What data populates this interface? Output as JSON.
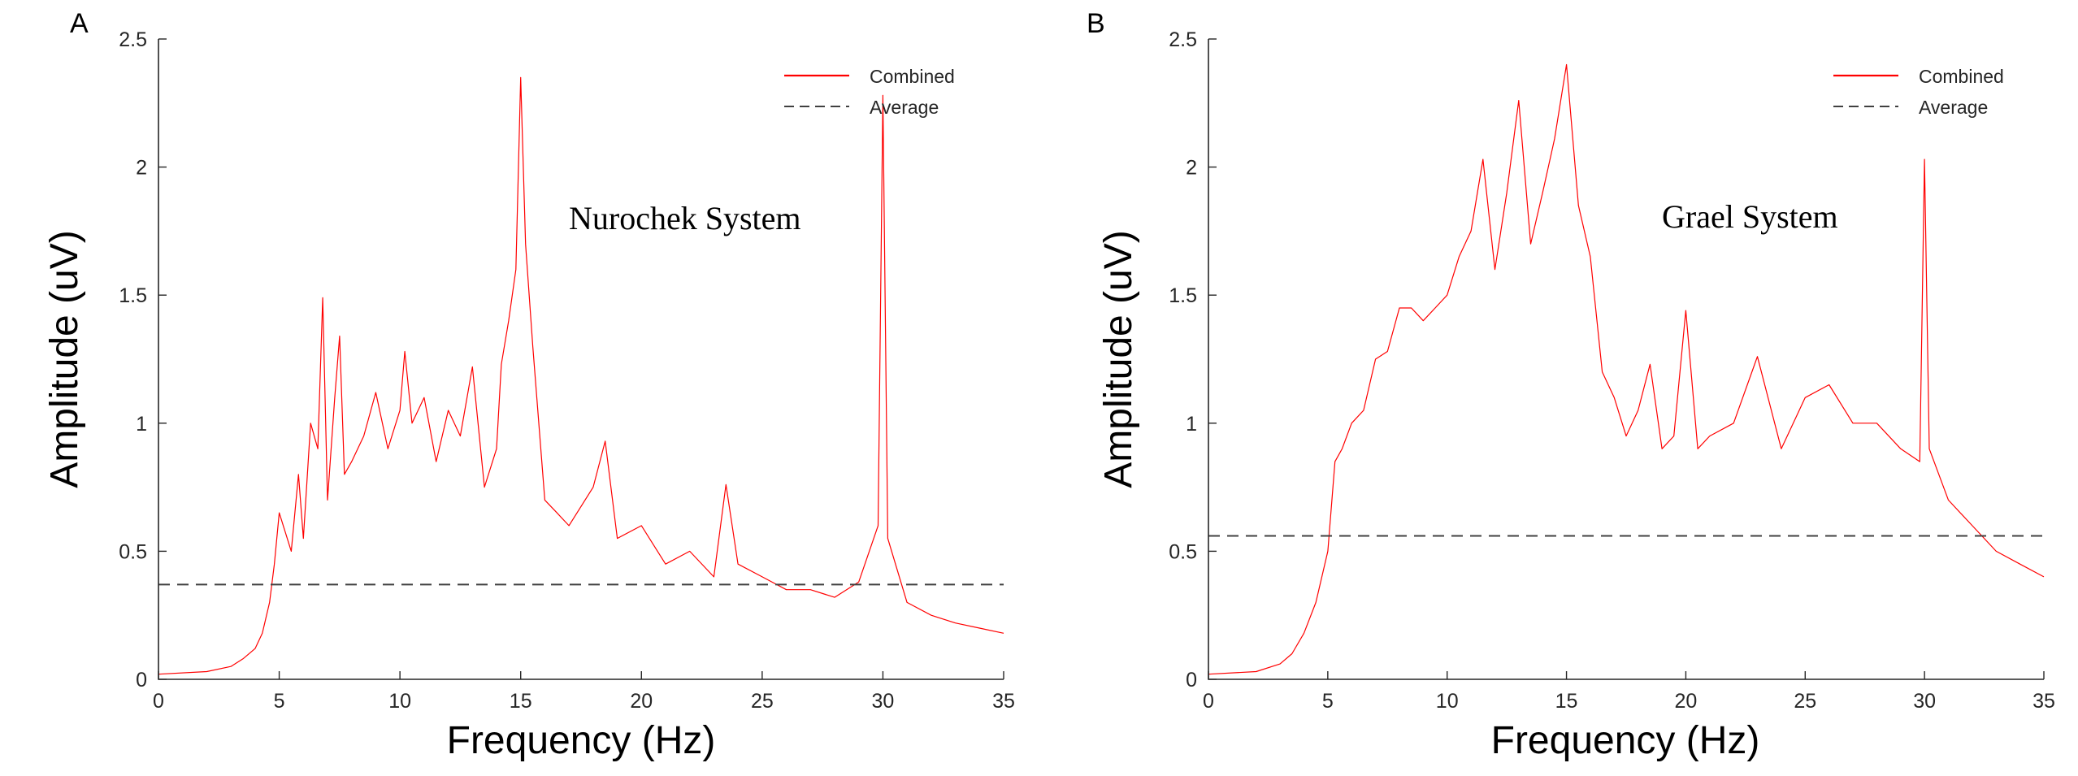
{
  "chart_data": [
    {
      "panel_label": "A",
      "type": "line",
      "annotation": "Nurochek System",
      "xlabel": "Frequency (Hz)",
      "ylabel": "Amplitude (uV)",
      "xlim": [
        0,
        35
      ],
      "ylim": [
        0,
        2.5
      ],
      "xticks": [
        0,
        5,
        10,
        15,
        20,
        25,
        30,
        35
      ],
      "yticks": [
        0,
        0.5,
        1,
        1.5,
        2,
        2.5
      ],
      "ytick_labels": [
        "0",
        "0.5",
        "1",
        "1.5",
        "2",
        "2.5"
      ],
      "grid": false,
      "legend_position": "top-right",
      "series": [
        {
          "name": "Combined",
          "style": "solid",
          "color": "#ff0000",
          "x": [
            0,
            2,
            3,
            3.5,
            4,
            4.3,
            4.6,
            4.8,
            5,
            5.5,
            5.8,
            6,
            6.3,
            6.6,
            6.8,
            7,
            7.3,
            7.5,
            7.7,
            8,
            8.5,
            9,
            9.5,
            10,
            10.2,
            10.5,
            11,
            11.5,
            12,
            12.5,
            13,
            13.5,
            14,
            14.2,
            14.5,
            14.8,
            15,
            15.2,
            15.5,
            16,
            16.5,
            17,
            18,
            18.5,
            19,
            20,
            21,
            22,
            23,
            23.5,
            24,
            25,
            26,
            27,
            28,
            29,
            29.8,
            30,
            30.2,
            31,
            32,
            33,
            34,
            35
          ],
          "y": [
            0.02,
            0.03,
            0.05,
            0.08,
            0.12,
            0.18,
            0.3,
            0.45,
            0.65,
            0.5,
            0.8,
            0.55,
            1.0,
            0.9,
            1.49,
            0.7,
            1.1,
            1.34,
            0.8,
            0.85,
            0.95,
            1.12,
            0.9,
            1.05,
            1.28,
            1.0,
            1.1,
            0.85,
            1.05,
            0.95,
            1.22,
            0.75,
            0.9,
            1.23,
            1.4,
            1.6,
            2.35,
            1.7,
            1.3,
            0.7,
            0.65,
            0.6,
            0.75,
            0.93,
            0.55,
            0.6,
            0.45,
            0.5,
            0.4,
            0.76,
            0.45,
            0.4,
            0.35,
            0.35,
            0.32,
            0.38,
            0.6,
            2.28,
            0.55,
            0.3,
            0.25,
            0.22,
            0.2,
            0.18
          ]
        },
        {
          "name": "Average",
          "style": "dashed",
          "color": "#404040",
          "x": [
            0,
            35
          ],
          "y": [
            0.37,
            0.37
          ]
        }
      ]
    },
    {
      "panel_label": "B",
      "type": "line",
      "annotation": "Grael System",
      "xlabel": "Frequency (Hz)",
      "ylabel": "Amplitude (uV)",
      "xlim": [
        0,
        35
      ],
      "ylim": [
        0,
        2.5
      ],
      "xticks": [
        0,
        5,
        10,
        15,
        20,
        25,
        30,
        35
      ],
      "yticks": [
        0,
        0.5,
        1,
        1.5,
        2,
        2.5
      ],
      "ytick_labels": [
        "0",
        "0.5",
        "1",
        "1.5",
        "2",
        "2.5"
      ],
      "grid": false,
      "legend_position": "top-right",
      "series": [
        {
          "name": "Combined",
          "style": "solid",
          "color": "#ff0000",
          "x": [
            0,
            2,
            3,
            3.5,
            4,
            4.5,
            5,
            5.3,
            5.6,
            6,
            6.5,
            7,
            7.5,
            8,
            8.5,
            9,
            9.5,
            10,
            10.5,
            11,
            11.5,
            12,
            12.5,
            13,
            13.5,
            14,
            14.5,
            15,
            15.5,
            16,
            16.5,
            17,
            17.5,
            18,
            18.5,
            19,
            19.5,
            20,
            20.5,
            21,
            22,
            23,
            24,
            25,
            26,
            27,
            28,
            29,
            29.8,
            30,
            30.2,
            31,
            32,
            33,
            34,
            35
          ],
          "y": [
            0.02,
            0.03,
            0.06,
            0.1,
            0.18,
            0.3,
            0.5,
            0.85,
            0.9,
            1.0,
            1.05,
            1.25,
            1.28,
            1.45,
            1.45,
            1.4,
            1.45,
            1.5,
            1.65,
            1.75,
            2.03,
            1.6,
            1.9,
            2.26,
            1.7,
            1.9,
            2.11,
            2.4,
            1.85,
            1.65,
            1.2,
            1.1,
            0.95,
            1.05,
            1.23,
            0.9,
            0.95,
            1.44,
            0.9,
            0.95,
            1.0,
            1.26,
            0.9,
            1.1,
            1.15,
            1.0,
            1.0,
            0.9,
            0.85,
            2.03,
            0.9,
            0.7,
            0.6,
            0.5,
            0.45,
            0.4
          ]
        },
        {
          "name": "Average",
          "style": "dashed",
          "color": "#404040",
          "x": [
            0,
            35
          ],
          "y": [
            0.56,
            0.56
          ]
        }
      ]
    }
  ]
}
